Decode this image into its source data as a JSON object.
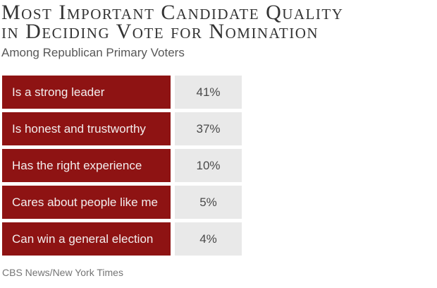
{
  "header": {
    "title_line1": "Most Important Candidate Quality",
    "title_line2": "in Deciding Vote for Nomination",
    "subtitle": "Among Republican Primary Voters"
  },
  "rows": [
    {
      "label": "Is a strong leader",
      "value": "41%"
    },
    {
      "label": "Is honest and trustworthy",
      "value": "37%"
    },
    {
      "label": "Has the right experience",
      "value": "10%"
    },
    {
      "label": "Cares about people like me",
      "value": "5%"
    },
    {
      "label": "Can win a general election",
      "value": "4%"
    }
  ],
  "footer": {
    "source": "CBS News/New York Times"
  },
  "colors": {
    "bar_red": "#8e1313",
    "value_cell_bg": "#e9e9e9",
    "label_text": "#f3eeee",
    "value_text": "#4a4a4a",
    "title_text": "#333333",
    "subtitle_text": "#575757",
    "source_text": "#757575"
  },
  "chart_data": {
    "type": "table",
    "title": "Most Important Candidate Quality in Deciding Vote for Nomination",
    "subtitle": "Among Republican Primary Voters",
    "categories": [
      "Is a strong leader",
      "Is honest and trustworthy",
      "Has the right experience",
      "Cares about people like me",
      "Can win a general election"
    ],
    "values": [
      41,
      37,
      10,
      5,
      4
    ],
    "unit": "%",
    "source": "CBS News/New York Times",
    "layout_hint": "uniform-width dark-red category cells on left, light-gray percentage cells on right, no axes or gridlines"
  }
}
